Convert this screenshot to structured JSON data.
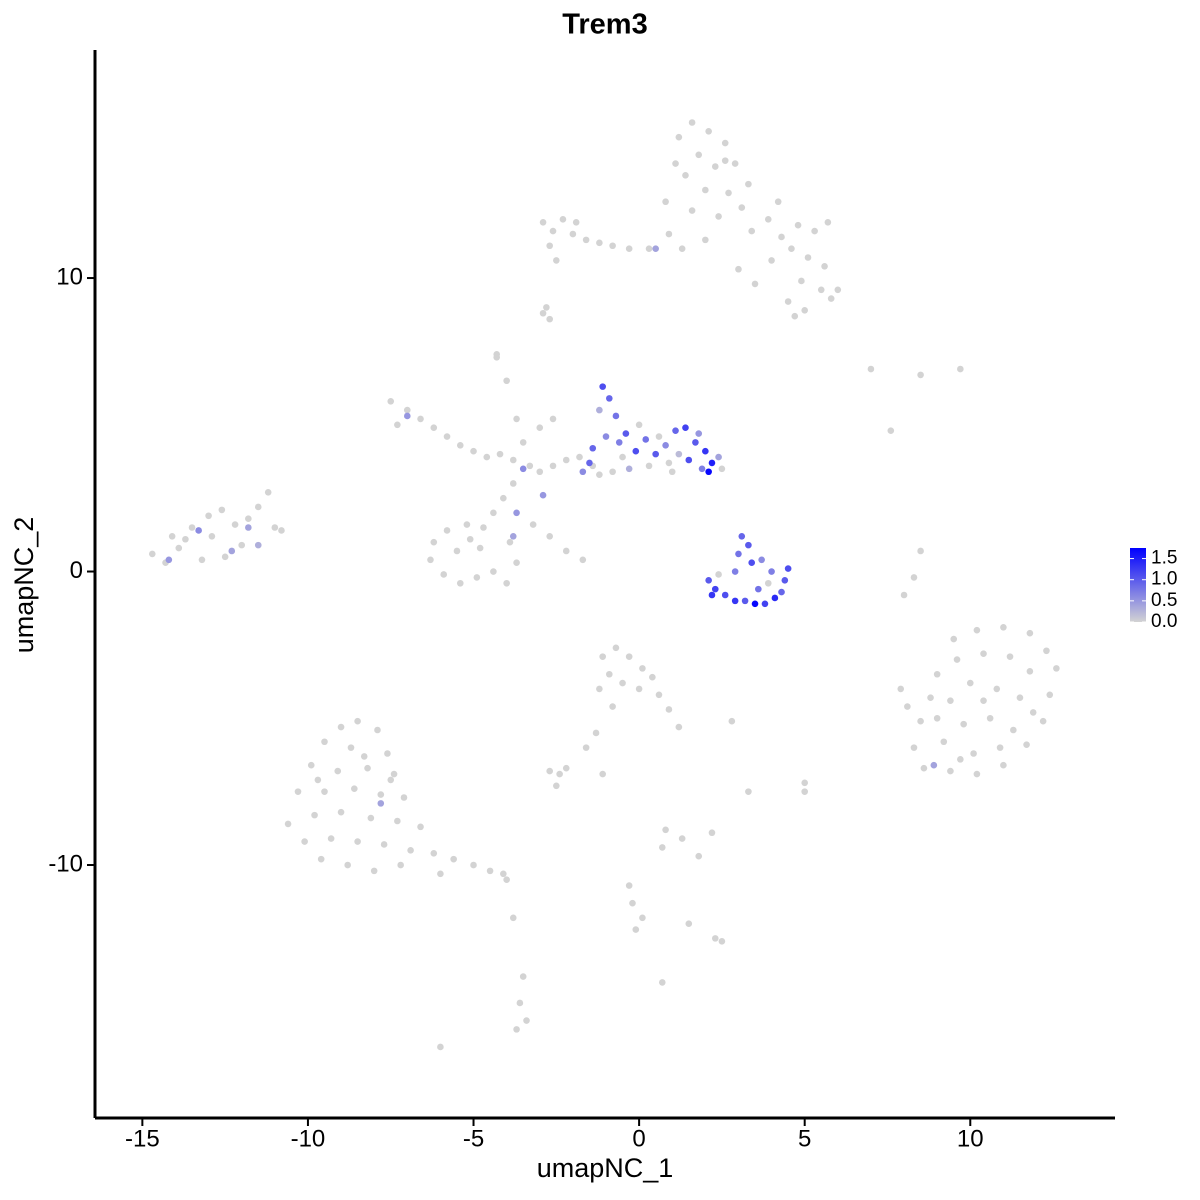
{
  "chart_data": {
    "type": "scatter",
    "title": "Trem3",
    "x_label": "umapNC_1",
    "y_label": "umapNC_2",
    "xlim": [
      -16.43,
      14.37
    ],
    "ylim": [
      -18.62,
      17.77
    ],
    "xticks": [
      -15,
      -10,
      -5,
      0,
      5,
      10
    ],
    "yticks": [
      -10,
      0,
      10
    ],
    "low_color": "#d3d3d3",
    "high_color": "#0000ff",
    "clim": [
      0,
      1.75
    ],
    "colorbar_ticks": [
      {
        "value": 0,
        "label": "0.0"
      },
      0.5,
      {
        "value": 1,
        "label": "1.0"
      },
      1.5
    ],
    "x": [
      1.2,
      1.6,
      2.1,
      2.6,
      1.8,
      2.3,
      1.4,
      2.9,
      2.0,
      2.7,
      1.6,
      3.1,
      2.4,
      3.4,
      3.9,
      4.3,
      4.8,
      5.3,
      5.7,
      4.6,
      5.1,
      5.6,
      4.0,
      4.9,
      5.5,
      6.0,
      4.5,
      5.0,
      0.8,
      0.9,
      1.3,
      2.0,
      3.0,
      3.5,
      2.6,
      1.1,
      3.3,
      4.2,
      5.8,
      4.7,
      -2.9,
      -2.6,
      -2.3,
      -2.0,
      -2.7,
      -1.9,
      -1.6,
      -1.2,
      -0.8,
      -0.3,
      0.3,
      -2.5,
      -2.8,
      -2.9,
      0.5,
      -7.5,
      -7.0,
      -7.3,
      -6.6,
      -6.2,
      -5.8,
      -5.4,
      -5.0,
      -4.6,
      -4.2,
      -3.8,
      -3.5,
      -3.7,
      -4.0,
      -4.3,
      -3.3,
      -3.0,
      -2.6,
      -2.2,
      -1.8,
      -1.4,
      -3.8,
      -4.1,
      -4.4,
      -4.7,
      -5.2,
      -5.8,
      -6.2,
      -6.3,
      -5.9,
      -5.4,
      -4.9,
      -4.4,
      -4.0,
      -3.7,
      -3.9,
      -4.8,
      -5.5,
      -5.1,
      -3.2,
      -2.7,
      -2.2,
      -1.7,
      -2.6,
      -3.0,
      -7.0,
      -3.5,
      -3.7,
      -3.8,
      -2.9,
      -1.1,
      -0.9,
      -1.2,
      -0.7,
      -0.4,
      -1.0,
      -1.4,
      -0.6,
      -0.1,
      0.2,
      0.5,
      0.8,
      1.1,
      1.4,
      1.7,
      2.0,
      2.2,
      2.4,
      1.9,
      1.5,
      1.2,
      0.9,
      0.3,
      -0.3,
      -0.8,
      -1.5,
      -1.2,
      -0.5,
      0.6,
      1.8,
      2.5,
      -1.7,
      2.1,
      0.0,
      1.0,
      -14.7,
      -14.3,
      -13.9,
      -13.5,
      -13.0,
      -12.6,
      -12.2,
      -11.8,
      -11.5,
      -11.2,
      -11.0,
      -10.8,
      -12.0,
      -12.5,
      -13.2,
      -13.7,
      -12.9,
      -14.1,
      -13.3,
      -12.3,
      -11.8,
      -11.5,
      -14.2,
      2.1,
      2.3,
      2.6,
      2.9,
      3.2,
      3.5,
      3.8,
      4.1,
      4.3,
      4.4,
      4.5,
      3.1,
      3.3,
      3.0,
      3.4,
      2.9,
      3.7,
      2.4,
      3.6,
      4.0,
      2.2,
      3.9,
      9.5,
      10.2,
      11.0,
      11.8,
      12.3,
      12.6,
      12.4,
      12.2,
      11.7,
      11.0,
      10.2,
      9.4,
      8.6,
      8.3,
      8.5,
      8.8,
      9.0,
      9.6,
      10.4,
      11.2,
      11.8,
      11.5,
      10.8,
      10.0,
      9.4,
      9.8,
      10.6,
      11.3,
      10.9,
      10.1,
      9.2,
      9.0,
      10.4,
      11.9,
      9.7,
      7.9,
      8.1,
      8.3,
      8.0,
      8.5,
      8.9,
      -9.0,
      -8.5,
      -7.9,
      -9.5,
      -8.7,
      -7.6,
      -9.9,
      -9.1,
      -8.2,
      -7.4,
      -10.3,
      -9.5,
      -8.6,
      -7.8,
      -7.1,
      -10.6,
      -9.8,
      -9.0,
      -8.1,
      -7.3,
      -6.6,
      -10.1,
      -9.3,
      -8.5,
      -7.7,
      -6.9,
      -6.2,
      -9.6,
      -8.8,
      -8.0,
      -5.6,
      -5.0,
      -4.5,
      -4.0,
      -7.2,
      -6.0,
      -8.3,
      -9.7,
      -7.5,
      -3.8,
      -7.8,
      -1.1,
      -0.7,
      -0.3,
      0.1,
      0.4,
      -0.9,
      -0.5,
      0.0,
      -1.2,
      0.6,
      0.9,
      1.2,
      -0.8,
      -1.3,
      -1.6,
      2.8,
      -2.7,
      -2.4,
      -2.2,
      -2.5,
      -1.1,
      0.8,
      0.7,
      1.3,
      1.8,
      2.2,
      3.3,
      5.0,
      5.0,
      -0.3,
      -0.2,
      0.1,
      -0.1,
      1.5,
      2.3,
      2.5,
      -3.5,
      -3.6,
      -3.4,
      -3.7,
      0.7,
      -6.0,
      7.0,
      7.6,
      9.7,
      8.5,
      -4.3,
      -2.7,
      -4.1
    ],
    "y": [
      14.8,
      15.3,
      15.0,
      14.6,
      14.2,
      13.8,
      13.5,
      13.9,
      13.0,
      12.9,
      12.3,
      12.4,
      12.1,
      11.6,
      12.0,
      11.4,
      11.8,
      11.6,
      11.9,
      11.0,
      10.7,
      10.4,
      10.6,
      9.9,
      9.6,
      9.6,
      9.2,
      8.9,
      12.6,
      11.5,
      11.0,
      11.3,
      10.3,
      9.8,
      14.0,
      13.9,
      13.2,
      12.6,
      9.3,
      8.7,
      11.9,
      11.6,
      12.0,
      11.5,
      11.1,
      11.9,
      11.3,
      11.2,
      11.1,
      11.0,
      11.0,
      10.6,
      9.0,
      8.8,
      11.0,
      5.8,
      5.5,
      5.0,
      5.2,
      4.9,
      4.6,
      4.3,
      4.1,
      3.9,
      4.0,
      3.8,
      4.4,
      5.2,
      6.5,
      7.4,
      3.6,
      3.4,
      3.6,
      3.8,
      3.9,
      3.6,
      3.0,
      2.5,
      2.0,
      1.5,
      1.6,
      1.4,
      1.0,
      0.4,
      -0.1,
      -0.4,
      -0.2,
      0.0,
      -0.4,
      0.3,
      1.0,
      0.8,
      0.7,
      1.1,
      1.6,
      1.2,
      0.7,
      0.4,
      5.2,
      4.9,
      5.3,
      3.5,
      2.0,
      1.2,
      2.6,
      6.3,
      5.9,
      5.5,
      5.3,
      4.7,
      4.6,
      4.2,
      4.4,
      4.1,
      4.5,
      4.0,
      4.3,
      4.8,
      4.9,
      4.4,
      4.1,
      3.7,
      3.9,
      3.5,
      3.8,
      4.0,
      3.7,
      3.6,
      3.5,
      3.4,
      3.7,
      3.3,
      3.9,
      4.6,
      4.7,
      3.5,
      3.4,
      3.4,
      5.0,
      3.4,
      0.6,
      0.3,
      0.8,
      1.5,
      1.9,
      2.1,
      1.6,
      1.8,
      2.2,
      2.7,
      1.5,
      1.4,
      0.9,
      0.5,
      0.4,
      1.1,
      1.2,
      1.2,
      1.4,
      0.7,
      1.5,
      0.9,
      0.4,
      -0.3,
      -0.6,
      -0.8,
      -1.0,
      -1.0,
      -1.1,
      -1.1,
      -0.9,
      -0.7,
      -0.3,
      0.1,
      1.2,
      0.9,
      0.6,
      0.3,
      0.0,
      0.4,
      -0.1,
      -0.6,
      0.0,
      -0.8,
      -0.4,
      -2.3,
      -2.0,
      -1.9,
      -2.1,
      -2.7,
      -3.3,
      -4.2,
      -5.1,
      -5.9,
      -6.6,
      -6.9,
      -6.8,
      -6.7,
      -6.0,
      -5.1,
      -4.3,
      -3.5,
      -3.0,
      -2.8,
      -2.9,
      -3.4,
      -4.3,
      -4.0,
      -3.8,
      -4.4,
      -5.2,
      -5.0,
      -5.4,
      -6.0,
      -6.2,
      -5.8,
      -5.0,
      -4.4,
      -4.8,
      -6.4,
      -4.0,
      -4.6,
      -0.2,
      -0.8,
      0.7,
      -6.6,
      -5.3,
      -5.1,
      -5.4,
      -5.8,
      -6.0,
      -6.2,
      -6.6,
      -6.8,
      -6.7,
      -6.9,
      -7.5,
      -7.5,
      -7.4,
      -7.6,
      -7.7,
      -8.6,
      -8.3,
      -8.2,
      -8.4,
      -8.5,
      -8.7,
      -9.2,
      -9.1,
      -9.2,
      -9.3,
      -9.5,
      -9.6,
      -9.8,
      -10.0,
      -10.2,
      -9.8,
      -10.0,
      -10.2,
      -10.5,
      -10.0,
      -10.3,
      -6.3,
      -7.1,
      -7.1,
      -11.8,
      -7.9,
      -2.9,
      -2.6,
      -2.9,
      -3.3,
      -3.6,
      -3.5,
      -3.8,
      -4.0,
      -4.0,
      -4.2,
      -4.7,
      -5.3,
      -4.6,
      -5.5,
      -6.0,
      -5.1,
      -6.8,
      -6.9,
      -6.7,
      -7.3,
      -6.9,
      -8.8,
      -9.4,
      -9.1,
      -9.7,
      -8.9,
      -7.5,
      -7.2,
      -7.5,
      -10.7,
      -11.3,
      -11.8,
      -12.2,
      -12.0,
      -12.5,
      -12.6,
      -13.8,
      -14.7,
      -15.3,
      -15.6,
      -14.0,
      -16.2,
      6.9,
      4.8,
      6.9,
      6.7,
      7.3,
      8.6,
      -10.3
    ],
    "values": [
      0,
      0,
      0,
      0,
      0,
      0,
      0,
      0,
      0,
      0,
      0,
      0,
      0,
      0,
      0,
      0,
      0,
      0,
      0,
      0,
      0,
      0,
      0,
      0,
      0,
      0,
      0,
      0,
      0,
      0,
      0,
      0,
      0,
      0,
      0,
      0,
      0,
      0,
      0,
      0,
      0,
      0,
      0,
      0,
      0,
      0,
      0,
      0,
      0,
      0,
      0,
      0,
      0,
      0,
      0.4,
      0,
      0,
      0,
      0,
      0,
      0,
      0,
      0,
      0,
      0,
      0,
      0,
      0,
      0,
      0,
      0,
      0,
      0,
      0,
      0,
      0,
      0,
      0,
      0,
      0,
      0,
      0,
      0,
      0,
      0,
      0,
      0,
      0,
      0,
      0,
      0,
      0,
      0,
      0,
      0,
      0,
      0,
      0,
      0,
      0,
      0.5,
      0.6,
      0.5,
      0.4,
      0.5,
      1.1,
      0.9,
      0.3,
      0.8,
      1.0,
      0.6,
      0.9,
      0.7,
      1.1,
      0.8,
      1.0,
      0.6,
      0.9,
      1.2,
      1.0,
      1.3,
      1.5,
      0.4,
      0.7,
      1.1,
      0.2,
      0,
      0,
      0.3,
      0,
      0.9,
      0,
      0,
      0,
      0.5,
      0,
      0.6,
      1.7,
      0,
      0,
      0,
      0,
      0,
      0,
      0,
      0,
      0,
      0,
      0,
      0,
      0,
      0,
      0,
      0,
      0,
      0,
      0,
      0,
      0.6,
      0.4,
      0.4,
      0.3,
      0.5,
      1.0,
      1.2,
      1.1,
      1.3,
      1.0,
      1.7,
      1.2,
      1.4,
      0.9,
      1.0,
      1.1,
      0.9,
      1.0,
      0.8,
      1.1,
      0.7,
      0.6,
      0,
      0.8,
      0.7,
      1.3,
      0,
      0,
      0,
      0,
      0,
      0,
      0,
      0,
      0,
      0,
      0,
      0,
      0,
      0,
      0,
      0,
      0,
      0,
      0,
      0,
      0,
      0,
      0,
      0,
      0,
      0,
      0,
      0,
      0,
      0,
      0,
      0,
      0,
      0,
      0,
      0,
      0,
      0,
      0,
      0,
      0,
      0.4,
      0,
      0,
      0,
      0,
      0,
      0,
      0,
      0,
      0,
      0,
      0,
      0,
      0,
      0,
      0,
      0,
      0,
      0,
      0,
      0,
      0,
      0,
      0,
      0,
      0,
      0,
      0,
      0,
      0,
      0,
      0,
      0,
      0,
      0,
      0,
      0,
      0,
      0,
      0,
      0,
      0.4,
      0,
      0,
      0,
      0,
      0,
      0,
      0,
      0,
      0,
      0,
      0,
      0,
      0,
      0,
      0,
      0,
      0,
      0,
      0,
      0,
      0,
      0,
      0,
      0,
      0,
      0,
      0,
      0,
      0,
      0,
      0,
      0,
      0,
      0,
      0,
      0,
      0,
      0,
      0,
      0,
      0,
      0,
      0,
      0,
      0,
      0,
      0,
      0,
      0
    ]
  }
}
